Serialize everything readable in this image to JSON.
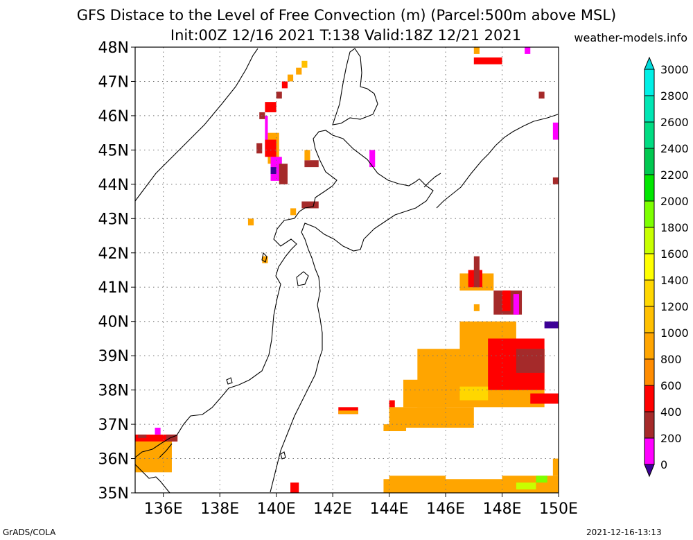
{
  "title": {
    "line1": "GFS Distace to the Level of Free Convection (m) (Parcel:500m above MSL)",
    "line2": "Init:00Z 12/16 2021 T:138 Valid:18Z 12/21 2021"
  },
  "site": "weather-models.info",
  "footer": {
    "left": "GrADS/COLA",
    "right": "2021-12-16-13:13"
  },
  "map": {
    "lon_range": [
      135,
      150
    ],
    "lat_range": [
      35,
      48
    ],
    "lat_labels": [
      "35N",
      "36N",
      "37N",
      "38N",
      "39N",
      "40N",
      "41N",
      "42N",
      "43N",
      "44N",
      "45N",
      "46N",
      "47N",
      "48N"
    ],
    "lon_labels": [
      "136E",
      "138E",
      "140E",
      "142E",
      "144E",
      "146E",
      "148E",
      "150E"
    ],
    "lon_ticks": [
      136,
      138,
      140,
      142,
      144,
      146,
      148,
      150
    ],
    "lat_ticks": [
      35,
      36,
      37,
      38,
      39,
      40,
      41,
      42,
      43,
      44,
      45,
      46,
      47,
      48
    ]
  },
  "colorbar": {
    "levels": [
      "0",
      "200",
      "400",
      "600",
      "800",
      "1000",
      "1200",
      "1400",
      "1600",
      "1800",
      "2000",
      "2200",
      "2400",
      "2600",
      "2800",
      "3000"
    ],
    "colors": [
      "#3c0096",
      "#ff00ff",
      "#a52a2a",
      "#ff0000",
      "#ff8c00",
      "#ffa500",
      "#ffc000",
      "#ffd700",
      "#ffff00",
      "#c8ff00",
      "#7dff00",
      "#00e600",
      "#00c850",
      "#00dc82",
      "#00e6b4",
      "#00f0e6",
      "#00dcdc"
    ]
  },
  "fields": [
    {
      "lon": [
        135.0,
        136.3
      ],
      "lat": [
        35.6,
        36.6
      ],
      "color": "#ffa500"
    },
    {
      "lon": [
        135.0,
        136.5
      ],
      "lat": [
        36.5,
        36.7
      ],
      "color": "#ff0000"
    },
    {
      "lon": [
        135.1,
        135.4
      ],
      "lat": [
        36.6,
        36.7
      ],
      "color": "#a52a2a"
    },
    {
      "lon": [
        135.7,
        135.9
      ],
      "lat": [
        36.7,
        36.9
      ],
      "color": "#ff00ff"
    },
    {
      "lon": [
        136.1,
        136.5
      ],
      "lat": [
        36.5,
        36.7
      ],
      "color": "#a52a2a"
    },
    {
      "lon": [
        139.4,
        139.6
      ],
      "lat": [
        45.9,
        46.1
      ],
      "color": "#a52a2a"
    },
    {
      "lon": [
        139.6,
        140.0
      ],
      "lat": [
        46.1,
        46.4
      ],
      "color": "#ff0000"
    },
    {
      "lon": [
        139.6,
        139.7
      ],
      "lat": [
        45.0,
        46.0
      ],
      "color": "#ff00ff"
    },
    {
      "lon": [
        139.7,
        140.1
      ],
      "lat": [
        44.6,
        45.5
      ],
      "color": "#ffa500"
    },
    {
      "lon": [
        139.6,
        140.0
      ],
      "lat": [
        44.8,
        45.3
      ],
      "color": "#ff0000"
    },
    {
      "lon": [
        139.8,
        140.2
      ],
      "lat": [
        44.1,
        44.8
      ],
      "color": "#ff00ff"
    },
    {
      "lon": [
        139.8,
        140.0
      ],
      "lat": [
        44.3,
        44.5
      ],
      "color": "#3c0096"
    },
    {
      "lon": [
        140.1,
        140.4
      ],
      "lat": [
        44.0,
        44.6
      ],
      "color": "#a52a2a"
    },
    {
      "lon": [
        139.3,
        139.5
      ],
      "lat": [
        44.9,
        45.2
      ],
      "color": "#a52a2a"
    },
    {
      "lon": [
        140.0,
        140.2
      ],
      "lat": [
        46.5,
        46.7
      ],
      "color": "#a52a2a"
    },
    {
      "lon": [
        140.2,
        140.4
      ],
      "lat": [
        46.8,
        47.0
      ],
      "color": "#ff0000"
    },
    {
      "lon": [
        140.4,
        140.6
      ],
      "lat": [
        47.0,
        47.2
      ],
      "color": "#ffa500"
    },
    {
      "lon": [
        140.7,
        140.9
      ],
      "lat": [
        47.2,
        47.4
      ],
      "color": "#ffa500"
    },
    {
      "lon": [
        140.9,
        141.1
      ],
      "lat": [
        47.4,
        47.6
      ],
      "color": "#ffc000"
    },
    {
      "lon": [
        141.0,
        141.5
      ],
      "lat": [
        44.5,
        44.7
      ],
      "color": "#a52a2a"
    },
    {
      "lon": [
        141.0,
        141.2
      ],
      "lat": [
        44.7,
        45.0
      ],
      "color": "#ffa500"
    },
    {
      "lon": [
        140.9,
        141.5
      ],
      "lat": [
        43.3,
        43.5
      ],
      "color": "#a52a2a"
    },
    {
      "lon": [
        140.5,
        140.7
      ],
      "lat": [
        43.1,
        43.3
      ],
      "color": "#ffa500"
    },
    {
      "lon": [
        139.0,
        139.2
      ],
      "lat": [
        42.8,
        43.0
      ],
      "color": "#ffa500"
    },
    {
      "lon": [
        139.5,
        139.7
      ],
      "lat": [
        41.7,
        41.9
      ],
      "color": "#ffa500"
    },
    {
      "lon": [
        143.3,
        143.5
      ],
      "lat": [
        44.5,
        45.0
      ],
      "color": "#ff00ff"
    },
    {
      "lon": [
        147.0,
        148.0
      ],
      "lat": [
        47.5,
        47.7
      ],
      "color": "#ff0000"
    },
    {
      "lon": [
        147.0,
        147.2
      ],
      "lat": [
        47.8,
        48.0
      ],
      "color": "#ffa500"
    },
    {
      "lon": [
        148.8,
        149.0
      ],
      "lat": [
        47.8,
        48.0
      ],
      "color": "#ff00ff"
    },
    {
      "lon": [
        149.3,
        149.5
      ],
      "lat": [
        46.5,
        46.7
      ],
      "color": "#a52a2a"
    },
    {
      "lon": [
        149.8,
        150.0
      ],
      "lat": [
        45.3,
        45.8
      ],
      "color": "#ff00ff"
    },
    {
      "lon": [
        149.8,
        150.0
      ],
      "lat": [
        44.0,
        44.2
      ],
      "color": "#a52a2a"
    },
    {
      "lon": [
        146.5,
        147.7
      ],
      "lat": [
        40.9,
        41.4
      ],
      "color": "#ffa500"
    },
    {
      "lon": [
        146.8,
        147.3
      ],
      "lat": [
        41.0,
        41.5
      ],
      "color": "#ff0000"
    },
    {
      "lon": [
        147.0,
        147.2
      ],
      "lat": [
        41.0,
        41.9
      ],
      "color": "#a52a2a"
    },
    {
      "lon": [
        147.7,
        148.7
      ],
      "lat": [
        40.2,
        40.9
      ],
      "color": "#a52a2a"
    },
    {
      "lon": [
        148.0,
        148.3
      ],
      "lat": [
        40.3,
        40.9
      ],
      "color": "#ff0000"
    },
    {
      "lon": [
        148.4,
        148.6
      ],
      "lat": [
        40.2,
        40.8
      ],
      "color": "#ff00ff"
    },
    {
      "lon": [
        149.5,
        150.0
      ],
      "lat": [
        39.8,
        40.0
      ],
      "color": "#3c0096"
    },
    {
      "lon": [
        147.0,
        147.2
      ],
      "lat": [
        40.3,
        40.5
      ],
      "color": "#ffa500"
    },
    {
      "lon": [
        145.0,
        149.5
      ],
      "lat": [
        37.5,
        39.2
      ],
      "color": "#ffa500"
    },
    {
      "lon": [
        146.5,
        148.5
      ],
      "lat": [
        39.0,
        40.0
      ],
      "color": "#ffa500"
    },
    {
      "lon": [
        147.5,
        149.5
      ],
      "lat": [
        38.0,
        39.5
      ],
      "color": "#ff0000"
    },
    {
      "lon": [
        148.5,
        149.5
      ],
      "lat": [
        38.5,
        39.2
      ],
      "color": "#a52a2a"
    },
    {
      "lon": [
        149.0,
        150.0
      ],
      "lat": [
        37.6,
        37.9
      ],
      "color": "#ff0000"
    },
    {
      "lon": [
        146.5,
        147.5
      ],
      "lat": [
        37.7,
        38.1
      ],
      "color": "#ffd700"
    },
    {
      "lon": [
        144.5,
        146.0
      ],
      "lat": [
        37.5,
        38.3
      ],
      "color": "#ffa500"
    },
    {
      "lon": [
        144.0,
        147.0
      ],
      "lat": [
        36.9,
        37.5
      ],
      "color": "#ffa500"
    },
    {
      "lon": [
        143.8,
        144.5
      ],
      "lat": [
        36.8,
        37.0
      ],
      "color": "#ffa500"
    },
    {
      "lon": [
        143.8,
        144.6
      ],
      "lat": [
        36.8,
        36.9
      ],
      "color": "#ffa500"
    },
    {
      "lon": [
        144.0,
        144.2
      ],
      "lat": [
        37.5,
        37.7
      ],
      "color": "#ff0000"
    },
    {
      "lon": [
        142.2,
        142.9
      ],
      "lat": [
        37.3,
        37.5
      ],
      "color": "#ff0000"
    },
    {
      "lon": [
        142.2,
        142.9
      ],
      "lat": [
        37.3,
        37.4
      ],
      "color": "#ffa500"
    },
    {
      "lon": [
        140.5,
        140.8
      ],
      "lat": [
        35.0,
        35.3
      ],
      "color": "#ff0000"
    },
    {
      "lon": [
        143.8,
        148.0
      ],
      "lat": [
        35.0,
        35.4
      ],
      "color": "#ffa500"
    },
    {
      "lon": [
        144.0,
        146.0
      ],
      "lat": [
        35.3,
        35.5
      ],
      "color": "#ffa500"
    },
    {
      "lon": [
        148.0,
        150.0
      ],
      "lat": [
        35.0,
        35.5
      ],
      "color": "#ffa500"
    },
    {
      "lon": [
        148.5,
        149.2
      ],
      "lat": [
        35.1,
        35.3
      ],
      "color": "#c8ff00"
    },
    {
      "lon": [
        149.2,
        149.6
      ],
      "lat": [
        35.3,
        35.5
      ],
      "color": "#7dff00"
    },
    {
      "lon": [
        149.8,
        150.0
      ],
      "lat": [
        35.5,
        36.0
      ],
      "color": "#ffa500"
    },
    {
      "lon": [
        147.1,
        147.5
      ],
      "lat": [
        35.0,
        35.2
      ],
      "color": "#ffa500"
    }
  ]
}
